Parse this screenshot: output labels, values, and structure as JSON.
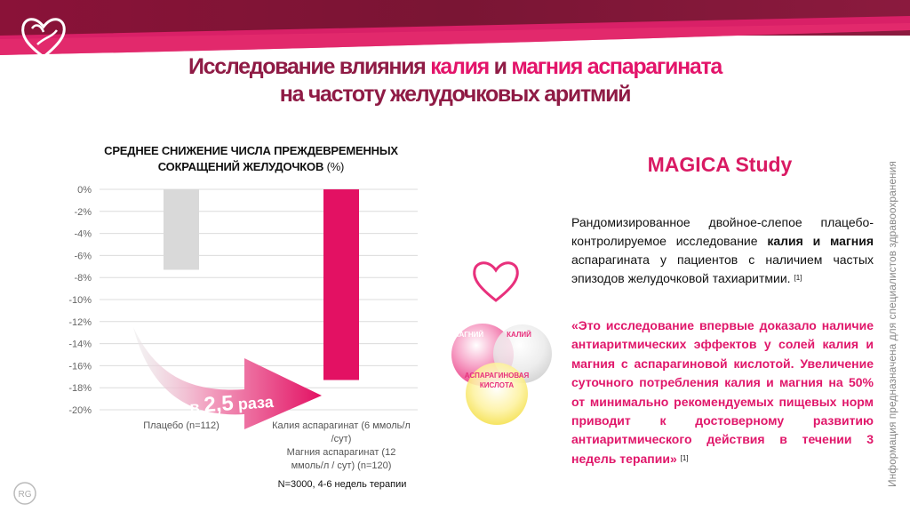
{
  "header": {
    "title_line1_a": "Исследование влияния ",
    "title_line1_b": "калия",
    "title_line1_c": " и ",
    "title_line1_d": "магния аспарагината",
    "title_line2": "на частоту желудочковых аритмий"
  },
  "chart": {
    "title_line1": "СРЕДНЕЕ СНИЖЕНИЕ ЧИСЛА ПРЕЖДЕВРЕМЕННЫХ",
    "title_line2": "СОКРАЩЕНИЙ ЖЕЛУДОЧКОВ",
    "title_unit": " (%)",
    "arrow_text_prefix": "в ",
    "arrow_text_value": "2,5",
    "arrow_text_suffix": " раза",
    "note": "N=3000, 4-6 недель терапии"
  },
  "chart_data": {
    "type": "bar",
    "categories": [
      "Плацебо (n=112)",
      "Калия аспарагинат (6 ммоль/л /сут) Магния аспарагинат (12 ммоль/л / сут) (n=120)"
    ],
    "category_lines": [
      [
        "Плацебо (n=112)"
      ],
      [
        "Калия аспарагинат (6 ммоль/л",
        "/сут)",
        "Магния аспарагинат (12",
        "ммоль/л / сут) (n=120)"
      ]
    ],
    "values": [
      -7.3,
      -17.3
    ],
    "colors": [
      "#d9d9d9",
      "#e31163"
    ],
    "ylim": [
      -20,
      0
    ],
    "yticks": [
      0,
      -2,
      -4,
      -6,
      -8,
      -10,
      -12,
      -14,
      -16,
      -18,
      -20
    ],
    "ytick_labels": [
      "0%",
      "-2%",
      "-4%",
      "-6%",
      "-8%",
      "-10%",
      "-12%",
      "-14%",
      "-16%",
      "-18%",
      "-20%"
    ],
    "grid": true
  },
  "study": {
    "title": "MAGICA Study",
    "desc_a": "Рандомизированное двойное-слепое плацебо-контролируемое исследование ",
    "desc_b": "калия и магния",
    "desc_c": " аспарагината у пациентов с наличием частых эпизодов желудочковой тахиаритмии.",
    "ref": "[1]",
    "quote": "«Это исследование впервые доказало наличие антиаритмических эффектов у солей калия и магния с аспарагиновой кислотой. Увеличение суточного потребления калия и магния на 50% от минимально рекомендуемых пищевых норм приводит к достоверному развитию антиаритмического действия в течении 3 недель терапии»",
    "quote_ref": "[1]"
  },
  "venn": {
    "magnesium": "МАГНИЙ",
    "potassium": "КАЛИЙ",
    "acid_line1": "АСПАРАГИНОВАЯ",
    "acid_line2": "КИСЛОТА"
  },
  "side_note": "Информация предназначена для специалистов здравоохранения"
}
